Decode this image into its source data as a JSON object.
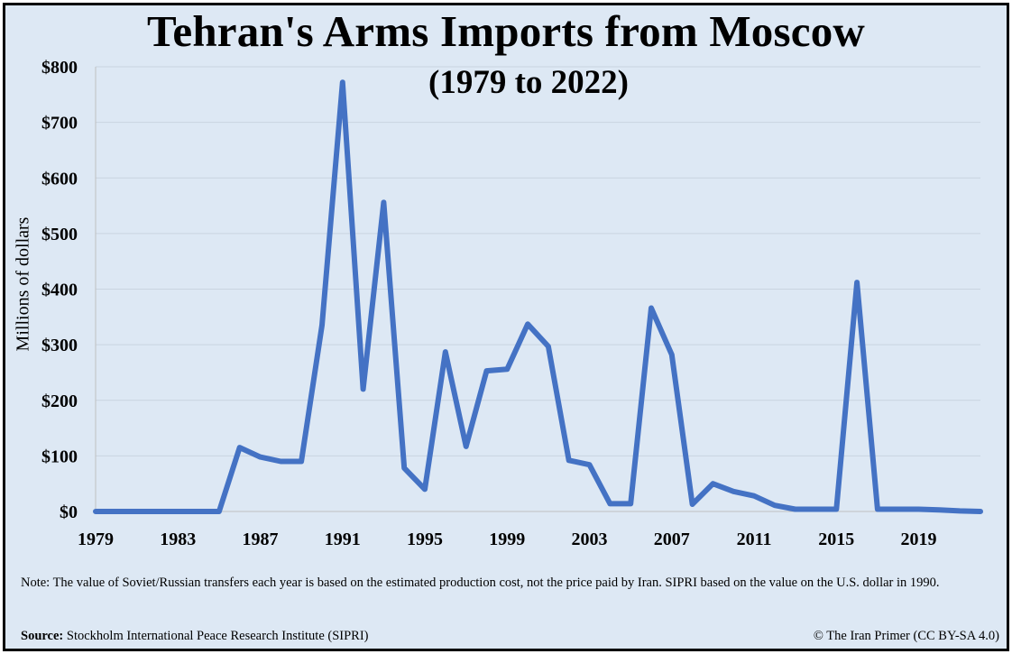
{
  "header": {
    "title": "Tehran's Arms Imports from Moscow",
    "subtitle": "(1979 to 2022)"
  },
  "footer": {
    "note": "Note: The value of Soviet/Russian transfers each year is based on the estimated production cost, not the price paid by Iran. SIPRI based on the value on the U.S. dollar in 1990.",
    "source_label": "Source:",
    "source_text": "Stockholm International Peace Research Institute (SIPRI)",
    "credit": "© The Iran Primer (CC BY-SA 4.0)"
  },
  "colors": {
    "line": "#4472c4",
    "background": "#dde8f4",
    "grid": "#c9d4e0"
  },
  "chart_data": {
    "type": "line",
    "title": "Tehran's Arms Imports from Moscow",
    "subtitle": "(1979 to 2022)",
    "xlabel": "",
    "ylabel": "Millions of dollars",
    "xlim": [
      1979,
      2022
    ],
    "ylim": [
      0,
      800
    ],
    "grid": true,
    "legend": "none",
    "x_tick_labels": [
      "1979",
      "1983",
      "1987",
      "1991",
      "1995",
      "1999",
      "2003",
      "2007",
      "2011",
      "2015",
      "2019"
    ],
    "y_tick_labels": [
      "$0",
      "$100",
      "$200",
      "$300",
      "$400",
      "$500",
      "$600",
      "$700",
      "$800"
    ],
    "y_ticks": [
      0,
      100,
      200,
      300,
      400,
      500,
      600,
      700,
      800
    ],
    "x": [
      1979,
      1980,
      1981,
      1982,
      1983,
      1984,
      1985,
      1986,
      1987,
      1988,
      1989,
      1990,
      1991,
      1992,
      1993,
      1994,
      1995,
      1996,
      1997,
      1998,
      1999,
      2000,
      2001,
      2002,
      2003,
      2004,
      2005,
      2006,
      2007,
      2008,
      2009,
      2010,
      2011,
      2012,
      2013,
      2014,
      2015,
      2016,
      2017,
      2018,
      2019,
      2020,
      2021,
      2022
    ],
    "series": [
      {
        "values": [
          0,
          0,
          0,
          0,
          0,
          0,
          0,
          115,
          98,
          90,
          90,
          335,
          772,
          220,
          556,
          78,
          40,
          287,
          117,
          253,
          256,
          337,
          297,
          92,
          84,
          14,
          14,
          366,
          282,
          13,
          50,
          36,
          28,
          11,
          4,
          4,
          4,
          412,
          4,
          4,
          4,
          3,
          1,
          0
        ]
      }
    ]
  }
}
